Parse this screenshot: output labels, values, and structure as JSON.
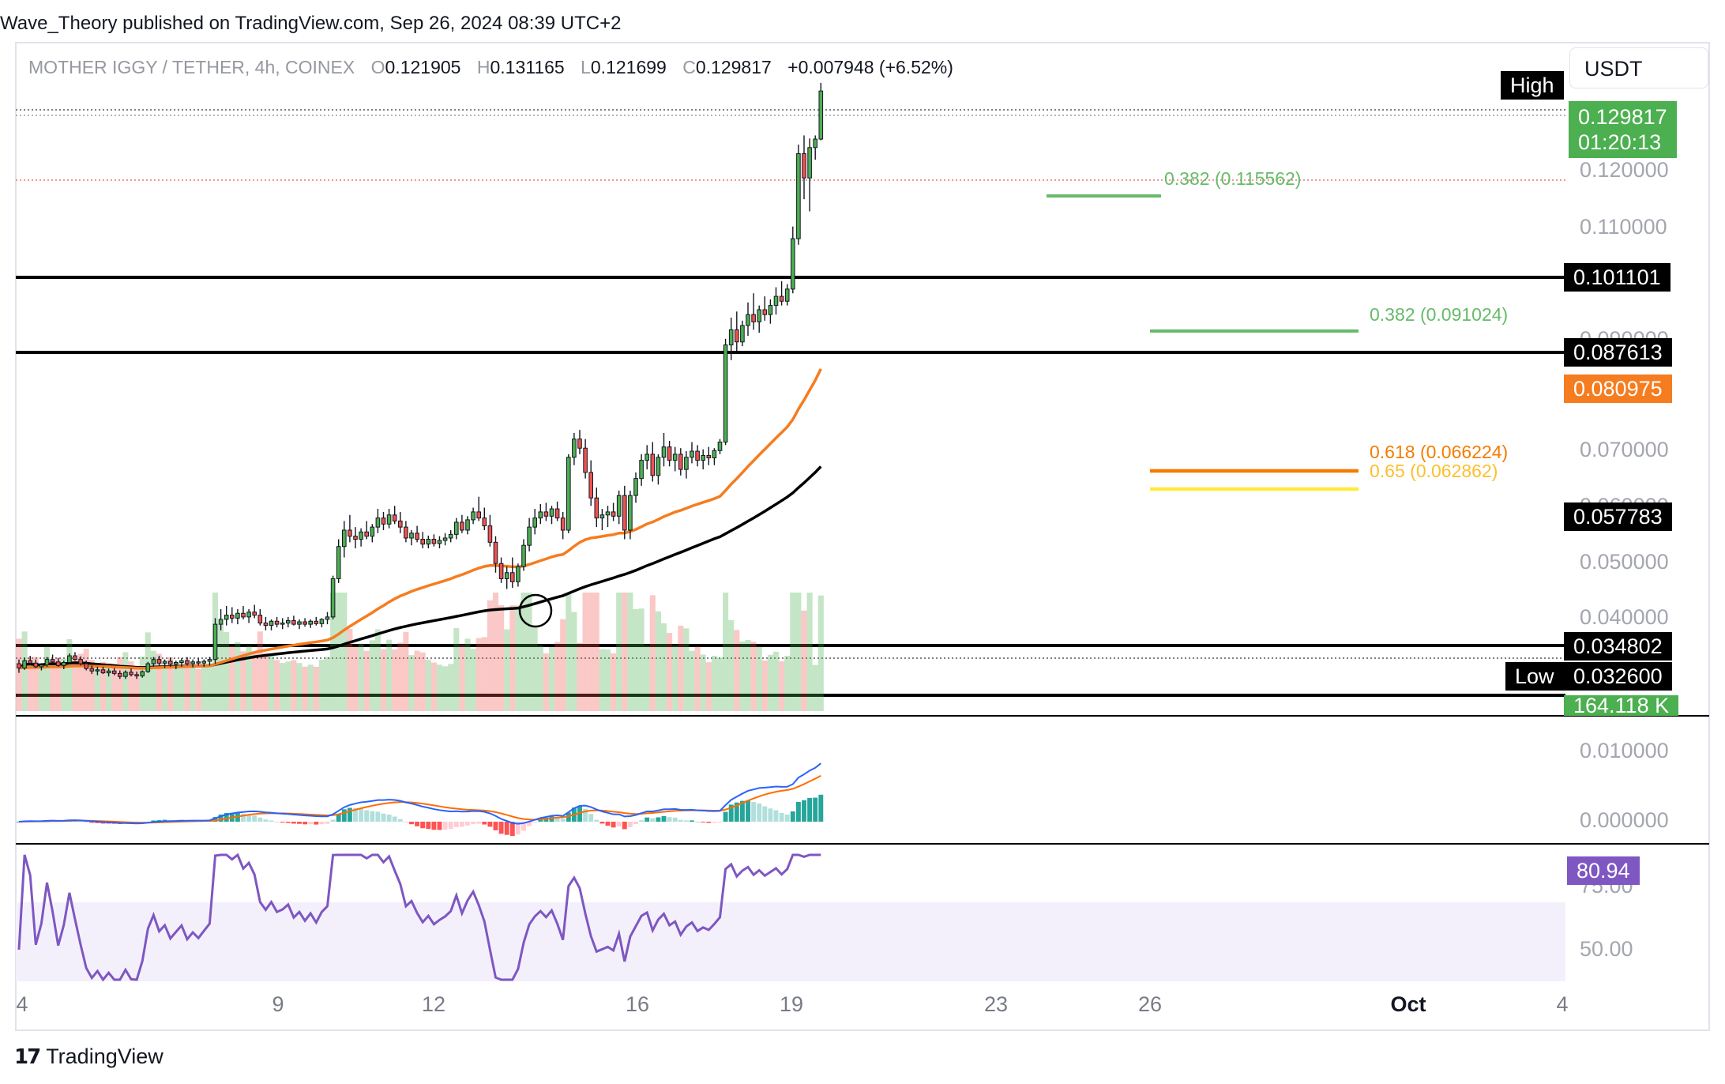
{
  "header": {
    "published_line": "Wave_Theory published on TradingView.com, Sep 26, 2024 08:39 UTC+2"
  },
  "legend": {
    "symbol": "MOTHER IGGY / TETHER, 4h, COINEX",
    "o_key": "O",
    "o_val": "0.121905",
    "h_key": "H",
    "h_val": "0.131165",
    "l_key": "L",
    "l_val": "0.121699",
    "c_key": "C",
    "c_val": "0.129817",
    "change": "+0.007948 (+6.52%)"
  },
  "toolbar": {
    "currency": "USDT"
  },
  "price_axis": {
    "labels": [
      "0.120000",
      "0.110000",
      "0.090000",
      "0.070000",
      "0.060000",
      "0.050000",
      "0.040000"
    ],
    "macd_labels": [
      "0.010000",
      "0.000000"
    ],
    "rsi_labels": [
      "75.00",
      "50.00"
    ]
  },
  "tags": {
    "high_label": "High",
    "low_label": "Low",
    "last_price": "0.129817",
    "countdown": "01:20:13",
    "lvl_1": "0.101101",
    "lvl_2": "0.087613",
    "ema_fast": "0.080975",
    "ema_slow": "0.057783",
    "lvl_3": "0.034802",
    "low_value": "0.032600",
    "volume": "164.118 K",
    "rsi": "80.94"
  },
  "fib_levels": {
    "f1": "0.382 (0.115562)",
    "f2": "0.382 (0.091024)",
    "f3": "0.618 (0.066224)",
    "f4": "0.65 (0.062862)"
  },
  "x_axis": {
    "labels": [
      "4",
      "9",
      "12",
      "16",
      "19",
      "23",
      "26",
      "Oct",
      "4"
    ]
  },
  "footer": {
    "brand": "TradingView",
    "logo_text": "17"
  },
  "colors": {
    "bull": "#4caf50",
    "bear": "#ef5350",
    "ema_fast": "#f57c1f",
    "ema_slow": "#000000",
    "macd": "#2962ff",
    "signal": "#ff6d00",
    "rsi": "#7e57c2",
    "fib_green": "#66bb6a",
    "fib_orange": "#f57c00",
    "fib_yellow": "#ffeb3b"
  },
  "chart_data": {
    "type": "candlestick",
    "ylim": [
      0.029,
      0.137
    ],
    "horizontal_levels": [
      0.101101,
      0.087613,
      0.034802
    ],
    "candles": [
      [
        0.0355,
        0.0362,
        0.034,
        0.0348
      ],
      [
        0.0348,
        0.0365,
        0.0345,
        0.036
      ],
      [
        0.036,
        0.0368,
        0.0352,
        0.0356
      ],
      [
        0.0356,
        0.0362,
        0.0348,
        0.035
      ],
      [
        0.035,
        0.0356,
        0.0344,
        0.0353
      ],
      [
        0.0353,
        0.0366,
        0.035,
        0.0362
      ],
      [
        0.0362,
        0.037,
        0.0355,
        0.0358
      ],
      [
        0.0358,
        0.0364,
        0.035,
        0.0352
      ],
      [
        0.0352,
        0.036,
        0.0346,
        0.0357
      ],
      [
        0.0357,
        0.0372,
        0.0354,
        0.0368
      ],
      [
        0.0368,
        0.0374,
        0.036,
        0.0362
      ],
      [
        0.0362,
        0.0367,
        0.0352,
        0.0355
      ],
      [
        0.0355,
        0.036,
        0.0344,
        0.0347
      ],
      [
        0.0347,
        0.0352,
        0.0338,
        0.0343
      ],
      [
        0.0343,
        0.035,
        0.0336,
        0.0345
      ],
      [
        0.0345,
        0.035,
        0.0338,
        0.034
      ],
      [
        0.034,
        0.0347,
        0.0334,
        0.0343
      ],
      [
        0.0343,
        0.0348,
        0.0336,
        0.0339
      ],
      [
        0.0339,
        0.0344,
        0.033,
        0.0334
      ],
      [
        0.0334,
        0.0344,
        0.033,
        0.0341
      ],
      [
        0.0341,
        0.0347,
        0.0334,
        0.0337
      ],
      [
        0.0337,
        0.0342,
        0.033,
        0.0335
      ],
      [
        0.0335,
        0.0344,
        0.0332,
        0.0342
      ],
      [
        0.0342,
        0.0358,
        0.034,
        0.0355
      ],
      [
        0.0355,
        0.0366,
        0.035,
        0.0362
      ],
      [
        0.0362,
        0.0368,
        0.0352,
        0.0356
      ],
      [
        0.0356,
        0.0362,
        0.0348,
        0.0359
      ],
      [
        0.0359,
        0.0365,
        0.035,
        0.0354
      ],
      [
        0.0354,
        0.036,
        0.0346,
        0.0357
      ],
      [
        0.0357,
        0.0364,
        0.035,
        0.036
      ],
      [
        0.036,
        0.0366,
        0.0352,
        0.0355
      ],
      [
        0.0355,
        0.0362,
        0.0349,
        0.0358
      ],
      [
        0.0358,
        0.0364,
        0.0352,
        0.0356
      ],
      [
        0.0356,
        0.0362,
        0.035,
        0.0359
      ],
      [
        0.0359,
        0.0366,
        0.0352,
        0.0362
      ],
      [
        0.0362,
        0.043,
        0.0355,
        0.042
      ],
      [
        0.042,
        0.0445,
        0.041,
        0.0428
      ],
      [
        0.0428,
        0.045,
        0.0418,
        0.0435
      ],
      [
        0.0435,
        0.0448,
        0.0422,
        0.043
      ],
      [
        0.043,
        0.0445,
        0.042,
        0.0438
      ],
      [
        0.0438,
        0.045,
        0.0428,
        0.0432
      ],
      [
        0.0432,
        0.0445,
        0.0422,
        0.044
      ],
      [
        0.044,
        0.0452,
        0.043,
        0.0435
      ],
      [
        0.0435,
        0.0445,
        0.0418,
        0.0422
      ],
      [
        0.0422,
        0.0432,
        0.041,
        0.0418
      ],
      [
        0.0418,
        0.0428,
        0.041,
        0.0425
      ],
      [
        0.0425,
        0.0432,
        0.0415,
        0.042
      ],
      [
        0.042,
        0.043,
        0.0412,
        0.0422
      ],
      [
        0.0422,
        0.0432,
        0.0415,
        0.0426
      ],
      [
        0.0426,
        0.0434,
        0.0418,
        0.042
      ],
      [
        0.042,
        0.0428,
        0.0412,
        0.0424
      ],
      [
        0.0424,
        0.043,
        0.0416,
        0.042
      ],
      [
        0.042,
        0.0428,
        0.0414,
        0.0425
      ],
      [
        0.0425,
        0.0432,
        0.0418,
        0.0421
      ],
      [
        0.0421,
        0.043,
        0.0415,
        0.0428
      ],
      [
        0.0428,
        0.044,
        0.042,
        0.0432
      ],
      [
        0.0432,
        0.05,
        0.0428,
        0.0495
      ],
      [
        0.0495,
        0.056,
        0.0488,
        0.0548
      ],
      [
        0.0548,
        0.059,
        0.053,
        0.0575
      ],
      [
        0.0575,
        0.06,
        0.0555,
        0.0565
      ],
      [
        0.0565,
        0.058,
        0.0545,
        0.056
      ],
      [
        0.056,
        0.0578,
        0.0548,
        0.0572
      ],
      [
        0.0572,
        0.059,
        0.056,
        0.0565
      ],
      [
        0.0565,
        0.0585,
        0.0555,
        0.058
      ],
      [
        0.058,
        0.061,
        0.057,
        0.0595
      ],
      [
        0.0595,
        0.0605,
        0.0575,
        0.0585
      ],
      [
        0.0585,
        0.061,
        0.0578,
        0.06
      ],
      [
        0.06,
        0.0615,
        0.0585,
        0.059
      ],
      [
        0.059,
        0.0605,
        0.057,
        0.058
      ],
      [
        0.058,
        0.059,
        0.0555,
        0.0562
      ],
      [
        0.0562,
        0.0575,
        0.055,
        0.057
      ],
      [
        0.057,
        0.0582,
        0.0555,
        0.056
      ],
      [
        0.056,
        0.0572,
        0.0545,
        0.0552
      ],
      [
        0.0552,
        0.0566,
        0.0545,
        0.056
      ],
      [
        0.056,
        0.0568,
        0.0548,
        0.0553
      ],
      [
        0.0553,
        0.0565,
        0.0545,
        0.0558
      ],
      [
        0.0558,
        0.057,
        0.055,
        0.0562
      ],
      [
        0.0562,
        0.0575,
        0.0555,
        0.0568
      ],
      [
        0.0568,
        0.0595,
        0.056,
        0.0588
      ],
      [
        0.0588,
        0.06,
        0.057,
        0.0575
      ],
      [
        0.0575,
        0.0598,
        0.0568,
        0.0592
      ],
      [
        0.0592,
        0.0612,
        0.0585,
        0.0605
      ],
      [
        0.0605,
        0.063,
        0.059,
        0.0595
      ],
      [
        0.0595,
        0.0612,
        0.0575,
        0.0582
      ],
      [
        0.0582,
        0.06,
        0.0548,
        0.0555
      ],
      [
        0.0555,
        0.0565,
        0.0505,
        0.052
      ],
      [
        0.052,
        0.053,
        0.0488,
        0.0495
      ],
      [
        0.0495,
        0.0515,
        0.0478,
        0.0505
      ],
      [
        0.0505,
        0.053,
        0.048,
        0.049
      ],
      [
        0.049,
        0.052,
        0.0482,
        0.0515
      ],
      [
        0.0515,
        0.056,
        0.0508,
        0.055
      ],
      [
        0.055,
        0.0595,
        0.054,
        0.058
      ],
      [
        0.058,
        0.061,
        0.0568,
        0.0595
      ],
      [
        0.0595,
        0.0618,
        0.0585,
        0.0605
      ],
      [
        0.0605,
        0.062,
        0.059,
        0.0598
      ],
      [
        0.0598,
        0.0615,
        0.0585,
        0.061
      ],
      [
        0.061,
        0.0622,
        0.059,
        0.0595
      ],
      [
        0.0595,
        0.0605,
        0.056,
        0.0575
      ],
      [
        0.0575,
        0.07,
        0.057,
        0.0695
      ],
      [
        0.0695,
        0.0735,
        0.0682,
        0.0725
      ],
      [
        0.0725,
        0.074,
        0.07,
        0.071
      ],
      [
        0.071,
        0.0725,
        0.066,
        0.067
      ],
      [
        0.067,
        0.069,
        0.0615,
        0.0628
      ],
      [
        0.0628,
        0.0645,
        0.058,
        0.0595
      ],
      [
        0.0595,
        0.061,
        0.0575,
        0.06
      ],
      [
        0.06,
        0.0615,
        0.058,
        0.0605
      ],
      [
        0.0605,
        0.062,
        0.059,
        0.0598
      ],
      [
        0.0598,
        0.064,
        0.0585,
        0.0632
      ],
      [
        0.0632,
        0.0648,
        0.056,
        0.0575
      ],
      [
        0.0575,
        0.064,
        0.056,
        0.0632
      ],
      [
        0.0632,
        0.067,
        0.062,
        0.066
      ],
      [
        0.066,
        0.07,
        0.0648,
        0.069
      ],
      [
        0.069,
        0.0715,
        0.0675,
        0.07
      ],
      [
        0.07,
        0.072,
        0.0655,
        0.0665
      ],
      [
        0.0665,
        0.07,
        0.065,
        0.0695
      ],
      [
        0.0695,
        0.0735,
        0.068,
        0.0712
      ],
      [
        0.0712,
        0.0722,
        0.068,
        0.069
      ],
      [
        0.069,
        0.0712,
        0.0672,
        0.07
      ],
      [
        0.07,
        0.071,
        0.0665,
        0.0675
      ],
      [
        0.0675,
        0.0705,
        0.066,
        0.0695
      ],
      [
        0.0695,
        0.072,
        0.0685,
        0.0705
      ],
      [
        0.0705,
        0.0715,
        0.068,
        0.069
      ],
      [
        0.069,
        0.0708,
        0.0675,
        0.0698
      ],
      [
        0.0698,
        0.0712,
        0.0682,
        0.0694
      ],
      [
        0.0694,
        0.071,
        0.0682,
        0.0706
      ],
      [
        0.0706,
        0.0725,
        0.07,
        0.072
      ],
      [
        0.072,
        0.089,
        0.0715,
        0.088
      ],
      [
        0.088,
        0.0925,
        0.0855,
        0.0905
      ],
      [
        0.0905,
        0.0935,
        0.087,
        0.0885
      ],
      [
        0.0885,
        0.092,
        0.0878,
        0.0912
      ],
      [
        0.0912,
        0.095,
        0.0895,
        0.093
      ],
      [
        0.093,
        0.0965,
        0.0905,
        0.0918
      ],
      [
        0.0918,
        0.0945,
        0.09,
        0.0938
      ],
      [
        0.0938,
        0.096,
        0.092,
        0.093
      ],
      [
        0.093,
        0.0955,
        0.0915,
        0.0945
      ],
      [
        0.0945,
        0.0975,
        0.093,
        0.096
      ],
      [
        0.096,
        0.0985,
        0.0945,
        0.0952
      ],
      [
        0.0952,
        0.098,
        0.0945,
        0.0972
      ],
      [
        0.0972,
        0.1075,
        0.0965,
        0.1055
      ],
      [
        0.1055,
        0.121,
        0.1045,
        0.1195
      ],
      [
        0.1195,
        0.1225,
        0.112,
        0.1155
      ],
      [
        0.1155,
        0.122,
        0.11,
        0.1205
      ],
      [
        0.1205,
        0.1225,
        0.1185,
        0.1219
      ],
      [
        0.121905,
        0.131165,
        0.121699,
        0.129817
      ]
    ]
  }
}
